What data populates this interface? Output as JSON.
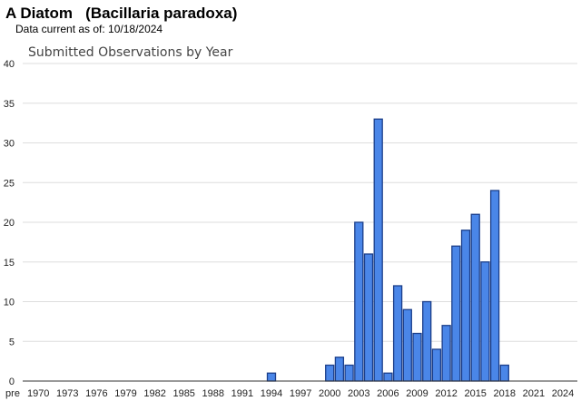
{
  "header": {
    "title": "A Diatom   (Bacillaria paradoxa)",
    "subtitle": "Data current as of: 10/18/2024"
  },
  "chart_data": {
    "type": "bar",
    "title": "Submitted Observations by Year",
    "xlabel": "",
    "ylabel": "",
    "ylim": [
      0,
      40
    ],
    "yticks": [
      0,
      5,
      10,
      15,
      20,
      25,
      30,
      35,
      40
    ],
    "xtick_labels": [
      "pre",
      "1970",
      "1973",
      "1976",
      "1979",
      "1982",
      "1985",
      "1988",
      "1991",
      "1994",
      "1997",
      "2000",
      "2003",
      "2006",
      "2009",
      "2012",
      "2015",
      "2018",
      "2021",
      "2024"
    ],
    "categories": [
      "pre",
      "1970",
      "1971",
      "1972",
      "1973",
      "1974",
      "1975",
      "1976",
      "1977",
      "1978",
      "1979",
      "1980",
      "1981",
      "1982",
      "1983",
      "1984",
      "1985",
      "1986",
      "1987",
      "1988",
      "1989",
      "1990",
      "1991",
      "1992",
      "1993",
      "1994",
      "1995",
      "1996",
      "1997",
      "1998",
      "1999",
      "2000",
      "2001",
      "2002",
      "2003",
      "2004",
      "2005",
      "2006",
      "2007",
      "2008",
      "2009",
      "2010",
      "2011",
      "2012",
      "2013",
      "2014",
      "2015",
      "2016",
      "2017",
      "2018",
      "2019",
      "2020",
      "2021",
      "2022",
      "2023",
      "2024"
    ],
    "values": [
      0,
      0,
      0,
      0,
      0,
      0,
      0,
      0,
      0,
      0,
      0,
      0,
      0,
      0,
      0,
      0,
      0,
      0,
      0,
      0,
      0,
      0,
      0,
      0,
      0,
      1,
      0,
      0,
      0,
      0,
      0,
      2,
      3,
      2,
      20,
      16,
      33,
      1,
      12,
      9,
      6,
      10,
      4,
      7,
      17,
      19,
      21,
      15,
      24,
      2,
      0,
      0,
      0,
      0,
      0,
      0
    ],
    "grid": true,
    "colors": {
      "bar_fill": "#4a86e8",
      "bar_edge": "#1c3f8a",
      "grid": "#dddddd",
      "axis": "#333333"
    }
  }
}
